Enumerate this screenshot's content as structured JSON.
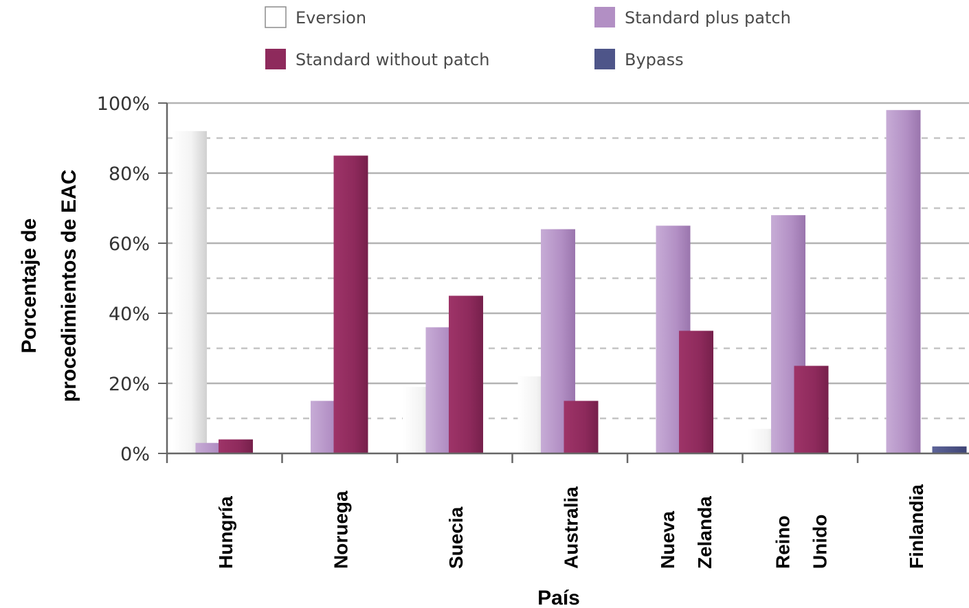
{
  "chart_data": {
    "type": "bar",
    "title": "",
    "xlabel": "País",
    "ylabel": [
      "Porcentaje de",
      "procedimientos de EAC"
    ],
    "ylim": [
      0,
      100
    ],
    "yticks": [
      "0%",
      "20%",
      "40%",
      "60%",
      "80%",
      "100%"
    ],
    "grid": true,
    "legend_position": "top",
    "categories": [
      [
        "Hungría"
      ],
      [
        "Noruega"
      ],
      [
        "Suecia"
      ],
      [
        "Australia"
      ],
      [
        "Nueva",
        "Zelanda"
      ],
      [
        "Reino",
        "Unido"
      ],
      [
        "Finlandia"
      ]
    ],
    "series": [
      {
        "name": "Eversion",
        "color": "#f2f2f2",
        "values": [
          92,
          0,
          19,
          22,
          0,
          7,
          0
        ]
      },
      {
        "name": "Standard plus patch",
        "color": "#b28fc4",
        "values": [
          3,
          15,
          36,
          64,
          65,
          68,
          98
        ]
      },
      {
        "name": "Standard without patch",
        "color": "#8e2a5c",
        "values": [
          4,
          85,
          45,
          15,
          35,
          25,
          0
        ]
      },
      {
        "name": "Bypass",
        "color": "#4e5589",
        "values": [
          0,
          0,
          0,
          0,
          0,
          0,
          2
        ]
      }
    ]
  }
}
